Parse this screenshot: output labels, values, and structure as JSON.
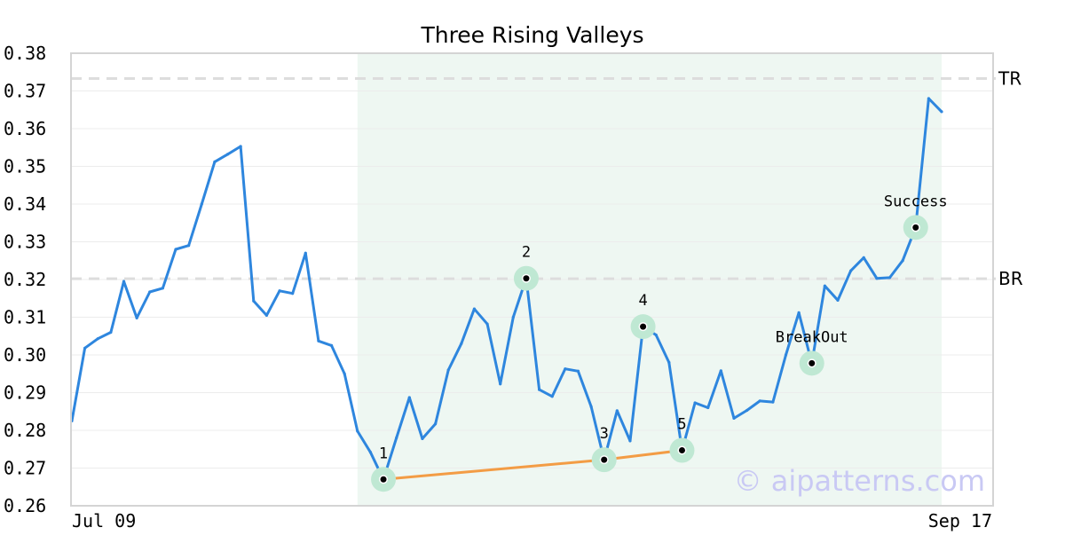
{
  "chart_data": {
    "type": "line",
    "title": "Three Rising Valleys",
    "ylim": [
      0.26,
      0.38
    ],
    "yticks": [
      "0.26",
      "0.27",
      "0.28",
      "0.29",
      "0.30",
      "0.31",
      "0.32",
      "0.33",
      "0.34",
      "0.35",
      "0.36",
      "0.37",
      "0.38"
    ],
    "xticks": [
      "Jul 09",
      "Sep 17"
    ],
    "grid": true,
    "colors": {
      "line": "#2e86de",
      "trendline": "#f39c45",
      "highlight_band": "#eef7f2",
      "marker_halo": "#bfe8d3",
      "reference": "#dddddd"
    },
    "series": [
      {
        "values": [
          0.2825,
          0.3018,
          0.3043,
          0.306,
          0.3195,
          0.3098,
          0.3167,
          0.3177,
          0.328,
          0.329,
          0.34,
          0.3512,
          0.3532,
          0.3553,
          0.3143,
          0.3105,
          0.317,
          0.3163,
          0.327,
          0.3037,
          0.3025,
          0.295,
          0.2798,
          0.2742,
          0.267,
          0.278,
          0.2887,
          0.2778,
          0.2817,
          0.296,
          0.303,
          0.3122,
          0.3082,
          0.2923,
          0.31,
          0.3203,
          0.2908,
          0.289,
          0.2963,
          0.2957,
          0.2863,
          0.2722,
          0.2852,
          0.2772,
          0.3075,
          0.3053,
          0.298,
          0.2747,
          0.2873,
          0.286,
          0.2958,
          0.2832,
          0.2853,
          0.2878,
          0.2875,
          0.3,
          0.3112,
          0.2978,
          0.3183,
          0.3145,
          0.3223,
          0.3258,
          0.3203,
          0.3205,
          0.325,
          0.3338,
          0.368,
          0.3645
        ]
      }
    ],
    "highlight_range": [
      22,
      67
    ],
    "reference_lines": [
      {
        "label": "TR",
        "value": 0.3733
      },
      {
        "label": "BR",
        "value": 0.3202
      }
    ],
    "trendline": {
      "points": [
        [
          24,
          0.267
        ],
        [
          41,
          0.2722
        ],
        [
          47,
          0.2747
        ]
      ]
    },
    "annotations": [
      {
        "label": "1",
        "index": 24,
        "value": 0.267
      },
      {
        "label": "2",
        "index": 35,
        "value": 0.3203
      },
      {
        "label": "3",
        "index": 41,
        "value": 0.2722
      },
      {
        "label": "4",
        "index": 44,
        "value": 0.3075
      },
      {
        "label": "5",
        "index": 47,
        "value": 0.2747
      },
      {
        "label": "BreakOut",
        "index": 57,
        "value": 0.2978
      },
      {
        "label": "Success",
        "index": 65,
        "value": 0.3338
      }
    ],
    "watermark": "© aipatterns.com"
  }
}
